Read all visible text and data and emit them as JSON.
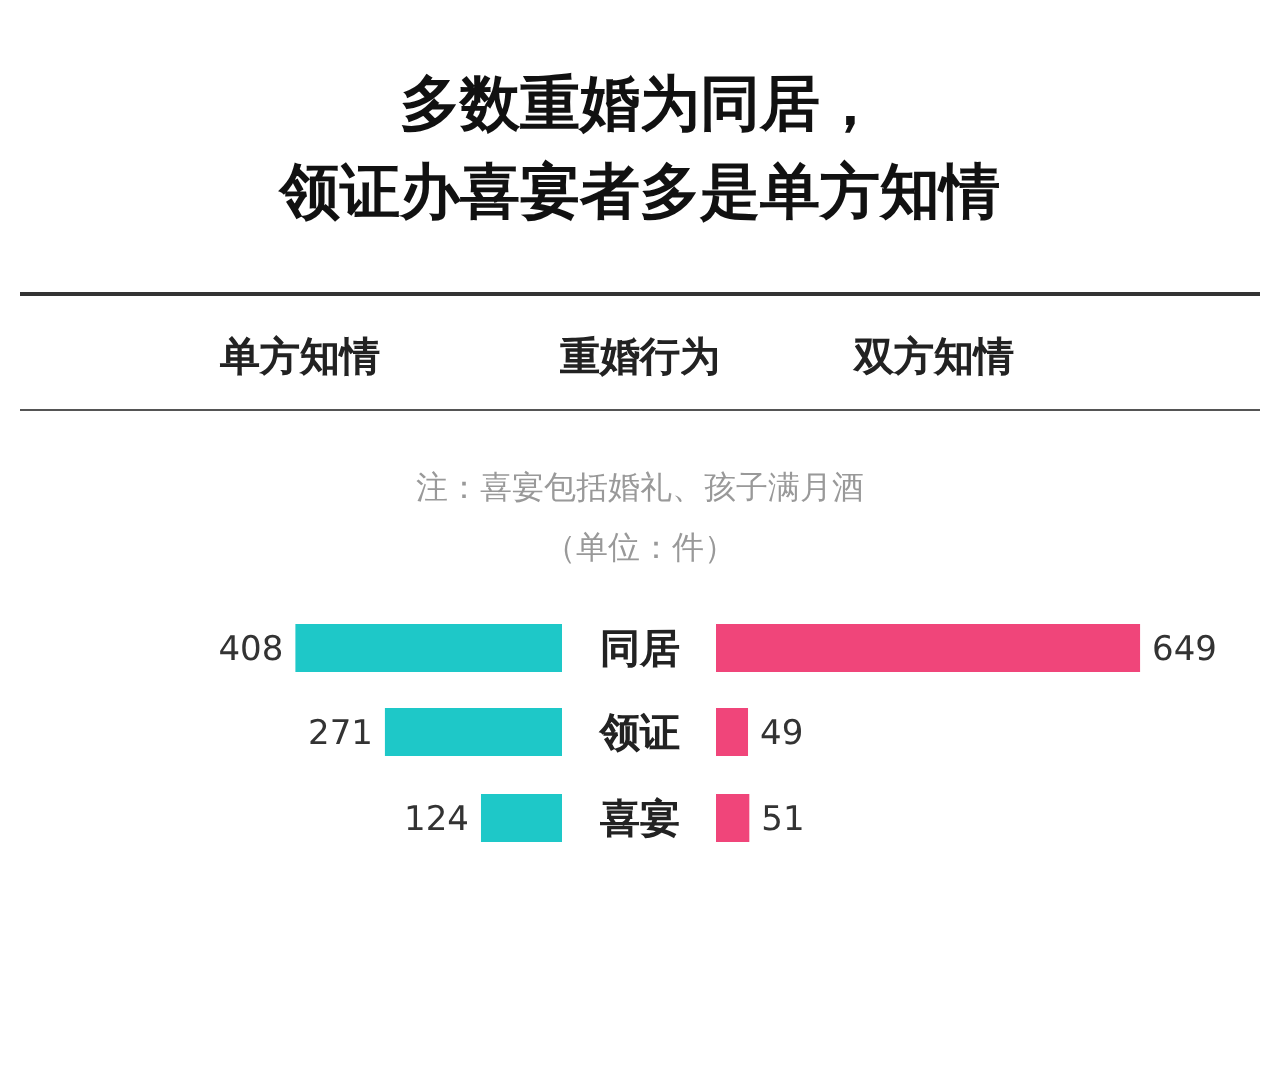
{
  "chart_data": [
    {
      "type": "bar",
      "orientation": "horizontal",
      "title": "多数重婚为同居，",
      "subtitle": "领证办喜宴者多是单方知情",
      "ylabel": "重婚行为",
      "annotations": [
        "注：喜宴包括婚礼、孩子满月酒",
        "（单位：件）"
      ],
      "categories": [
        "同居",
        "领证",
        "喜宴"
      ],
      "series": [
        {
          "name": "单方知情",
          "color": "#1ec8c8",
          "values": [
            408,
            271,
            124
          ]
        }
      ],
      "tick_labels": false,
      "data_labels": true
    },
    {
      "type": "bar",
      "orientation": "horizontal",
      "categories": [
        null,
        null,
        null
      ],
      "series": [
        {
          "name": "双方知情",
          "color": "#f0457a",
          "values": [
            649,
            49,
            51
          ]
        }
      ],
      "tick_labels": false,
      "data_labels": true
    }
  ]
}
